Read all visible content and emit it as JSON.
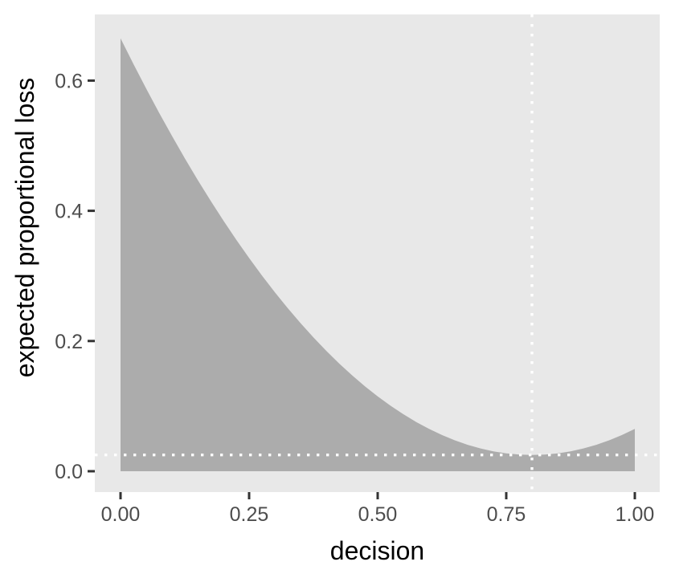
{
  "chart_data": {
    "type": "area",
    "title": "",
    "xlabel": "decision",
    "ylabel": "expected proportional loss",
    "x_axis": {
      "tick_values": [
        0,
        0.25,
        0.5,
        0.75,
        1.0
      ],
      "tick_labels": [
        "0.00",
        "0.25",
        "0.50",
        "0.75",
        "1.00"
      ],
      "range": [
        0,
        1
      ]
    },
    "y_axis": {
      "tick_values": [
        0,
        0.2,
        0.4,
        0.6
      ],
      "tick_labels": [
        "0.0",
        "0.2",
        "0.4",
        "0.6"
      ],
      "range": [
        0,
        0.665
      ]
    },
    "grid": "off",
    "legend": "none",
    "series": [
      {
        "name": "expected-proportional-loss",
        "baseline": 0,
        "x": [
          0,
          0.025,
          0.05,
          0.075,
          0.1,
          0.125,
          0.15,
          0.175,
          0.2,
          0.225,
          0.25,
          0.275,
          0.3,
          0.325,
          0.35,
          0.375,
          0.4,
          0.425,
          0.45,
          0.475,
          0.5,
          0.525,
          0.55,
          0.575,
          0.6,
          0.625,
          0.65,
          0.675,
          0.7,
          0.725,
          0.75,
          0.775,
          0.8,
          0.825,
          0.85,
          0.875,
          0.9,
          0.925,
          0.95,
          0.975,
          1.0
        ],
        "y": [
          0.665,
          0.6256,
          0.5875,
          0.5506,
          0.515,
          0.4806,
          0.4475,
          0.4156,
          0.385,
          0.3556,
          0.3275,
          0.3006,
          0.275,
          0.2506,
          0.2275,
          0.2056,
          0.185,
          0.1656,
          0.1475,
          0.1306,
          0.115,
          0.1006,
          0.0875,
          0.0756,
          0.065,
          0.0556,
          0.0475,
          0.0406,
          0.035,
          0.0306,
          0.0275,
          0.0256,
          0.025,
          0.0256,
          0.0275,
          0.0306,
          0.035,
          0.0406,
          0.0475,
          0.0556,
          0.065
        ]
      }
    ],
    "annotations": {
      "vline": {
        "x": 0.8,
        "style": "dotted",
        "color": "#FFFFFF"
      },
      "hline": {
        "y": 0.025,
        "style": "dotted",
        "color": "#FFFFFF"
      }
    },
    "colors": {
      "outer_background": "#FFFFFF",
      "panel_background": "#E8E8E8",
      "area_fill": "#ACACAC",
      "reference_line": "#FFFFFF",
      "tick_mark": "#333333",
      "tick_label": "#4D4D4D",
      "axis_title": "#000000"
    }
  }
}
